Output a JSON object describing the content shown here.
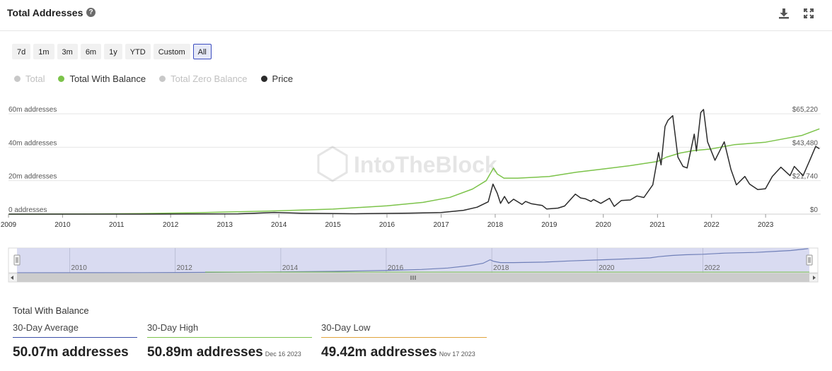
{
  "header": {
    "title": "Total Addresses"
  },
  "ranges": [
    "7d",
    "1m",
    "3m",
    "6m",
    "1y",
    "YTD",
    "Custom",
    "All"
  ],
  "active_range": "All",
  "legend": [
    {
      "label": "Total",
      "state": "off",
      "color": "#c8c8c8"
    },
    {
      "label": "Total With Balance",
      "state": "on",
      "color": "#7cc34a"
    },
    {
      "label": "Total Zero Balance",
      "state": "off",
      "color": "#c8c8c8"
    },
    {
      "label": "Price",
      "state": "on",
      "color": "#2b2b2b"
    }
  ],
  "watermark": "IntoTheBlock",
  "chart_data": {
    "type": "line",
    "x_ticks": [
      "2009",
      "2010",
      "2011",
      "2012",
      "2013",
      "2014",
      "2015",
      "2016",
      "2017",
      "2018",
      "2019",
      "2020",
      "2021",
      "2022",
      "2023"
    ],
    "y_left_ticks": [
      "0 addresses",
      "20m addresses",
      "40m addresses",
      "60m addresses"
    ],
    "y_right_ticks": [
      "$0",
      "$21,740",
      "$43,480",
      "$65,220"
    ],
    "y_left_range": [
      0,
      60000000
    ],
    "y_right_range": [
      0,
      65220
    ],
    "grid": true,
    "legend_position": "top-left",
    "series": [
      {
        "name": "Total With Balance",
        "axis": "left",
        "color": "#7cc34a",
        "points": [
          [
            "2009-01-03",
            0
          ],
          [
            "2010-07-01",
            100000
          ],
          [
            "2011-06-01",
            300000
          ],
          [
            "2012-06-01",
            800000
          ],
          [
            "2013-06-01",
            1500000
          ],
          [
            "2014-01-01",
            2000000
          ],
          [
            "2015-01-01",
            3000000
          ],
          [
            "2016-01-01",
            5000000
          ],
          [
            "2016-09-01",
            7000000
          ],
          [
            "2017-03-01",
            10000000
          ],
          [
            "2017-08-01",
            15000000
          ],
          [
            "2017-11-01",
            20000000
          ],
          [
            "2017-12-20",
            27500000
          ],
          [
            "2018-01-15",
            24000000
          ],
          [
            "2018-03-01",
            21500000
          ],
          [
            "2018-06-01",
            21500000
          ],
          [
            "2019-01-01",
            22500000
          ],
          [
            "2019-07-01",
            25000000
          ],
          [
            "2020-01-01",
            27000000
          ],
          [
            "2020-07-01",
            29000000
          ],
          [
            "2021-01-01",
            31500000
          ],
          [
            "2021-03-01",
            34000000
          ],
          [
            "2021-06-01",
            36500000
          ],
          [
            "2021-09-01",
            38000000
          ],
          [
            "2022-01-01",
            39000000
          ],
          [
            "2022-06-01",
            41500000
          ],
          [
            "2023-01-01",
            43000000
          ],
          [
            "2023-06-01",
            45500000
          ],
          [
            "2023-09-01",
            47000000
          ],
          [
            "2023-12-01",
            50000000
          ],
          [
            "2023-12-31",
            51000000
          ]
        ]
      },
      {
        "name": "Price",
        "axis": "right",
        "color": "#2b2b2b",
        "points": [
          [
            "2009-01-03",
            0
          ],
          [
            "2010-07-01",
            0
          ],
          [
            "2011-06-01",
            20
          ],
          [
            "2013-04-01",
            200
          ],
          [
            "2013-12-01",
            1100
          ],
          [
            "2014-06-01",
            600
          ],
          [
            "2015-06-01",
            250
          ],
          [
            "2016-06-01",
            650
          ],
          [
            "2017-01-01",
            1000
          ],
          [
            "2017-06-01",
            2500
          ],
          [
            "2017-09-01",
            4500
          ],
          [
            "2017-11-15",
            8000
          ],
          [
            "2017-12-17",
            19500
          ],
          [
            "2018-01-15",
            13500
          ],
          [
            "2018-02-06",
            7000
          ],
          [
            "2018-03-05",
            11500
          ],
          [
            "2018-04-01",
            7000
          ],
          [
            "2018-05-05",
            9700
          ],
          [
            "2018-07-01",
            6300
          ],
          [
            "2018-07-25",
            8200
          ],
          [
            "2018-09-01",
            6800
          ],
          [
            "2018-11-15",
            5600
          ],
          [
            "2018-12-15",
            3300
          ],
          [
            "2019-03-01",
            3900
          ],
          [
            "2019-04-15",
            5300
          ],
          [
            "2019-06-26",
            13000
          ],
          [
            "2019-08-01",
            10500
          ],
          [
            "2019-09-01",
            10000
          ],
          [
            "2019-10-10",
            8200
          ],
          [
            "2019-10-27",
            9500
          ],
          [
            "2019-12-15",
            7000
          ],
          [
            "2020-02-12",
            10300
          ],
          [
            "2020-03-15",
            5000
          ],
          [
            "2020-05-01",
            8800
          ],
          [
            "2020-07-01",
            9200
          ],
          [
            "2020-08-15",
            11800
          ],
          [
            "2020-10-01",
            10800
          ],
          [
            "2020-11-30",
            19000
          ],
          [
            "2021-01-08",
            40000
          ],
          [
            "2021-01-25",
            32000
          ],
          [
            "2021-02-21",
            57000
          ],
          [
            "2021-03-13",
            61000
          ],
          [
            "2021-04-14",
            64000
          ],
          [
            "2021-05-19",
            37000
          ],
          [
            "2021-06-22",
            31000
          ],
          [
            "2021-07-20",
            30000
          ],
          [
            "2021-09-06",
            52000
          ],
          [
            "2021-09-21",
            41000
          ],
          [
            "2021-10-20",
            66000
          ],
          [
            "2021-11-08",
            68000
          ],
          [
            "2021-12-05",
            47000
          ],
          [
            "2022-01-24",
            35000
          ],
          [
            "2022-03-28",
            47000
          ],
          [
            "2022-05-12",
            29000
          ],
          [
            "2022-06-18",
            19000
          ],
          [
            "2022-08-14",
            24500
          ],
          [
            "2022-09-15",
            19500
          ],
          [
            "2022-11-09",
            16000
          ],
          [
            "2022-12-31",
            16500
          ],
          [
            "2023-02-15",
            24500
          ],
          [
            "2023-04-14",
            30500
          ],
          [
            "2023-06-15",
            25000
          ],
          [
            "2023-07-14",
            31000
          ],
          [
            "2023-09-11",
            25000
          ],
          [
            "2023-10-24",
            34500
          ],
          [
            "2023-12-05",
            44000
          ],
          [
            "2023-12-31",
            42500
          ]
        ]
      }
    ]
  },
  "navigator": {
    "labels": [
      "2010",
      "2012",
      "2014",
      "2016",
      "2018",
      "2020",
      "2022"
    ]
  },
  "stats": {
    "title": "Total With Balance",
    "average": {
      "label": "30-Day Average",
      "value": "50.07m addresses",
      "color": "#3b4fa8"
    },
    "high": {
      "label": "30-Day High",
      "value": "50.89m addresses",
      "date": "Dec 16 2023",
      "color": "#7cc34a"
    },
    "low": {
      "label": "30-Day Low",
      "value": "49.42m addresses",
      "date": "Nov 17 2023",
      "color": "#e0a43c"
    }
  }
}
